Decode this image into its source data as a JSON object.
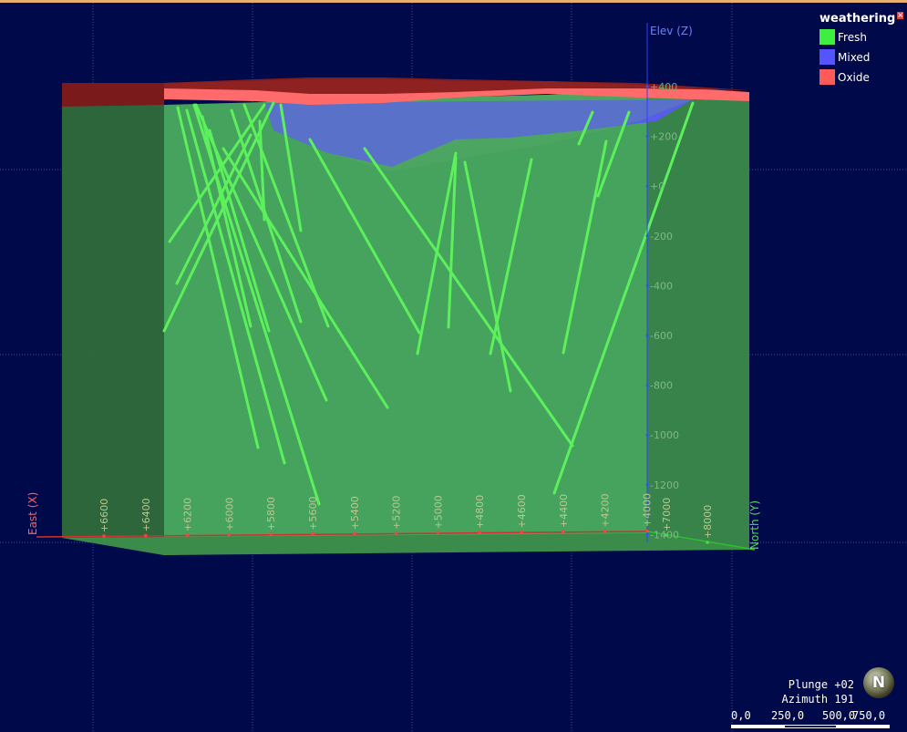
{
  "axes": {
    "elev_label": "Elev (Z)",
    "east_label": "East (X)",
    "north_label": "North (Y)",
    "elev_ticks": [
      "+400",
      "+200",
      "+0",
      "-200",
      "-400",
      "-600",
      "-800",
      "-1000",
      "-1200",
      "-1400"
    ],
    "east_ticks": [
      "+6600",
      "+6400",
      "+6200",
      "+6000",
      "+5800",
      "+5600",
      "+5400",
      "+5200",
      "+5000",
      "+4800",
      "+4600",
      "+4400",
      "+4200",
      "+4000"
    ],
    "north_ticks": [
      "+7000",
      "+8000"
    ]
  },
  "legend": {
    "title": "weathering",
    "close_icon": "close-icon",
    "items": [
      {
        "label": "Fresh",
        "color": "#3fef3f"
      },
      {
        "label": "Mixed",
        "color": "#5555ff"
      },
      {
        "label": "Oxide",
        "color": "#ff5a5a"
      }
    ]
  },
  "view": {
    "plunge": "Plunge +02",
    "azimuth": "Azimuth 191",
    "compass_label": "N",
    "compass_icon": "north-compass-icon"
  },
  "scale": {
    "labels": [
      "0,0",
      "250,0",
      "500,0",
      "750,0"
    ]
  },
  "colors": {
    "background": "#000a4a",
    "fresh_block": "#4caf60",
    "drillhole": "#5cf05c",
    "oxide": "#ff6262",
    "mixed": "#5a5af0",
    "east_axis": "#d03030",
    "north_axis": "#30c030",
    "elev_axis": "#3040ff",
    "tick_text": "#b8c890"
  }
}
